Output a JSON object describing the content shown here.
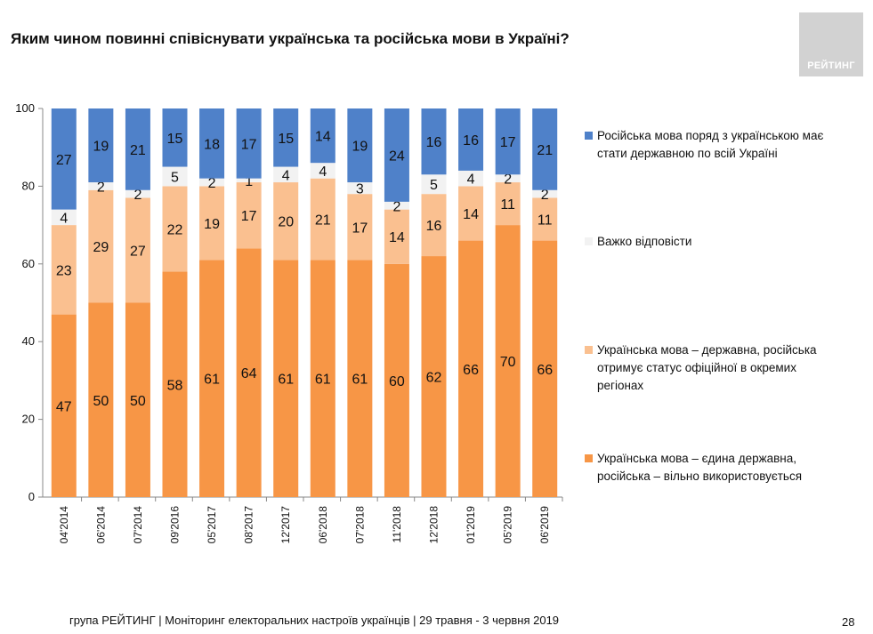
{
  "title": "Яким чином повинні співіснувати українська та російська мови в Україні?",
  "logo_text": "РЕЙТИНГ",
  "footer": "група РЕЙТИНГ | Моніторинг електоральних настроїв українців  | 29 травня - 3 червня 2019",
  "page_number": "28",
  "chart_data": {
    "type": "bar",
    "stacked": true,
    "title": "Яким чином повинні співіснувати українська та російська мови в Україні?",
    "categories": [
      "04'2014",
      "06'2014",
      "07'2014",
      "09'2016",
      "05'2017",
      "08'2017",
      "12'2017",
      "06'2018",
      "07'2018",
      "11'2018",
      "12'2018",
      "01'2019",
      "05'2019",
      "06'2019"
    ],
    "ylim": [
      0,
      100
    ],
    "yticks": [
      "0",
      "20",
      "40",
      "60",
      "80",
      "100"
    ],
    "grid": false,
    "legend_position": "right",
    "series": [
      {
        "name": "Українська мова – єдина державна, російська – вільно використовується",
        "color": "#f79646",
        "values": [
          47,
          50,
          50,
          58,
          61,
          64,
          61,
          61,
          61,
          60,
          62,
          66,
          70,
          66
        ]
      },
      {
        "name": "Українська мова – державна, російська отримує статус офіційної в окремих регіонах",
        "color": "#fac090",
        "values": [
          23,
          29,
          27,
          22,
          19,
          17,
          20,
          21,
          17,
          14,
          16,
          14,
          11,
          11
        ]
      },
      {
        "name": "Важко відповісти",
        "color": "#f2f2f2",
        "values": [
          4,
          2,
          2,
          5,
          2,
          1,
          4,
          4,
          3,
          2,
          5,
          4,
          2,
          2
        ]
      },
      {
        "name": "Російська мова поряд з українською має стати державною по всій Україні",
        "color": "#4f81c9",
        "values": [
          27,
          19,
          21,
          15,
          18,
          17,
          15,
          14,
          19,
          24,
          16,
          16,
          17,
          21
        ]
      }
    ]
  }
}
